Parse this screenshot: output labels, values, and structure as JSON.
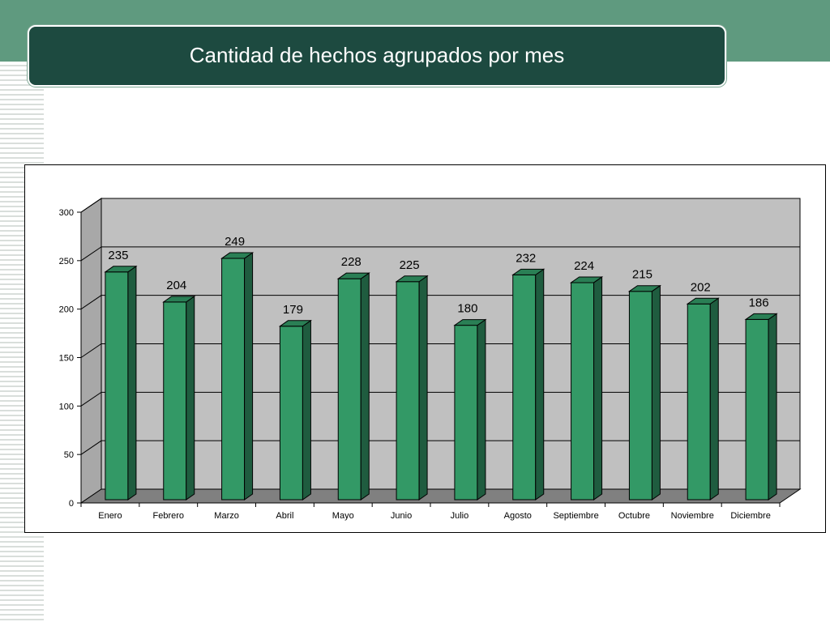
{
  "header": {
    "title": "Cantidad de hechos agrupados por mes"
  },
  "colors": {
    "band": "#5f9a7f",
    "title_bg": "#1d4a40",
    "bar_front": "#339966",
    "bar_side": "#1f5c3f",
    "bar_top": "#2a7f55",
    "wall": "#c0c0c0",
    "floor": "#808080"
  },
  "chart_data": {
    "type": "bar",
    "title": "",
    "xlabel": "",
    "ylabel": "",
    "categories": [
      "Enero",
      "Febrero",
      "Marzo",
      "Abril",
      "Mayo",
      "Junio",
      "Julio",
      "Agosto",
      "Septiembre",
      "Octubre",
      "Noviembre",
      "Diciembre"
    ],
    "values": [
      235,
      204,
      249,
      179,
      228,
      225,
      180,
      232,
      224,
      215,
      202,
      186
    ],
    "ylim": [
      0,
      300
    ],
    "yticks": [
      0,
      50,
      100,
      150,
      200,
      250,
      300
    ],
    "grid": true,
    "legend": "none",
    "style": "3d"
  }
}
